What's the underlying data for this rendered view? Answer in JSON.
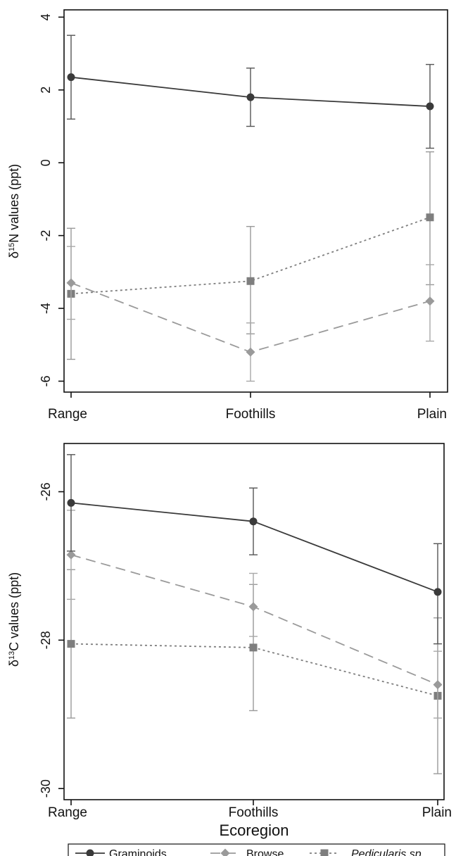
{
  "chart_data": [
    {
      "type": "line",
      "categories": [
        "Range",
        "Foothills",
        "Plain"
      ],
      "ylabel_prefix": "δ",
      "ylabel_sup": "15",
      "ylabel_suffix": "N values (ppt)",
      "xlabel": "",
      "ylim": [
        -6.3,
        4.2
      ],
      "yticks": [
        4,
        2,
        0,
        -2,
        -4,
        -6
      ],
      "ytick_labels": [
        "4",
        "2",
        "0",
        "-2",
        "-4",
        "-6"
      ],
      "series": [
        {
          "name": "Graminoids",
          "values": [
            2.35,
            1.8,
            1.55
          ],
          "lower": [
            1.2,
            1.0,
            0.4
          ],
          "upper": [
            3.5,
            2.6,
            2.7
          ]
        },
        {
          "name": "Browse",
          "values": [
            -3.3,
            -5.2,
            -3.8
          ],
          "lower": [
            -4.3,
            -6.0,
            -4.9
          ],
          "upper": [
            -2.3,
            -4.4,
            -2.8
          ]
        },
        {
          "name": "Pedicularis sp.",
          "values": [
            -3.6,
            -3.25,
            -1.5
          ],
          "lower": [
            -5.4,
            -4.7,
            -3.35
          ],
          "upper": [
            -1.8,
            -1.75,
            0.3
          ]
        }
      ]
    },
    {
      "type": "line",
      "categories": [
        "Range",
        "Foothills",
        "Plain"
      ],
      "ylabel_prefix": "δ",
      "ylabel_sup": "13",
      "ylabel_suffix": "C values (ppt)",
      "xlabel": "Ecoregion",
      "ylim": [
        -30.15,
        -25.35
      ],
      "yticks": [
        -26,
        -28,
        -30
      ],
      "ytick_labels": [
        "-26",
        "-28",
        "-30"
      ],
      "series": [
        {
          "name": "Graminoids",
          "values": [
            -26.15,
            -26.4,
            -27.35
          ],
          "lower": [
            -26.8,
            -26.85,
            -28.05
          ],
          "upper": [
            -25.5,
            -25.95,
            -26.7
          ]
        },
        {
          "name": "Browse",
          "values": [
            -26.85,
            -27.55,
            -28.6
          ],
          "lower": [
            -27.45,
            -27.95,
            -29.05
          ],
          "upper": [
            -26.25,
            -27.1,
            -28.15
          ]
        },
        {
          "name": "Pedicularis sp.",
          "values": [
            -28.05,
            -28.1,
            -28.75
          ],
          "lower": [
            -29.05,
            -28.95,
            -29.8
          ],
          "upper": [
            -27.05,
            -27.25,
            -27.7
          ]
        }
      ]
    }
  ],
  "legend": {
    "items": [
      {
        "label": "Graminoids",
        "italic": false
      },
      {
        "label": "Browse",
        "italic": false
      },
      {
        "label": "Pedicularis sp.",
        "italic": true
      }
    ]
  },
  "styles": {
    "series_colors": [
      "#3a3a3a",
      "#9a9a9a",
      "#7e7e7e"
    ],
    "errorbar_colors": [
      "#555555",
      "#a8a8a8",
      "#9a9a9a"
    ],
    "series_dashes": [
      "",
      "14 8",
      "3 4"
    ],
    "markers": [
      "circle",
      "diamond",
      "square"
    ],
    "axis_color": "#111111"
  }
}
